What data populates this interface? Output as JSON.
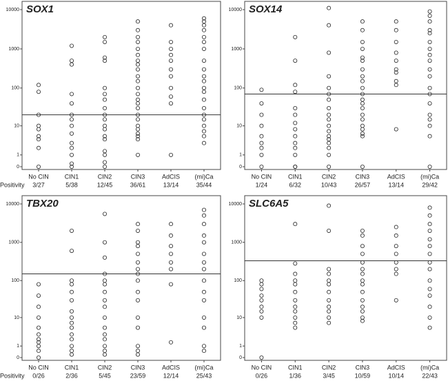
{
  "chart_data": [
    {
      "type": "scatter",
      "title": "SOX1",
      "positivity_label": "Positivity",
      "categories": [
        "No CIN",
        "CIN1",
        "CIN2",
        "CIN3",
        "AdCIS",
        "(mi)Ca"
      ],
      "positivity": [
        "3/27",
        "5/38",
        "12/45",
        "36/61",
        "13/14",
        "35/44"
      ],
      "points": [
        [
          0,
          2,
          4,
          5,
          8,
          10,
          20,
          80,
          120
        ],
        [
          0,
          0.2,
          1,
          2,
          3,
          6,
          10,
          15,
          20,
          40,
          70,
          400,
          500,
          1200
        ],
        [
          0,
          0.3,
          1,
          1.5,
          4,
          5,
          8,
          10,
          15,
          20,
          30,
          50,
          70,
          100,
          500,
          600,
          1500,
          2000
        ],
        [
          1,
          4,
          5,
          6,
          8,
          10,
          15,
          20,
          30,
          40,
          50,
          70,
          100,
          150,
          200,
          300,
          400,
          500,
          700,
          1000,
          1500,
          2000,
          3000,
          5000
        ],
        [
          1,
          40,
          60,
          100,
          200,
          300,
          500,
          700,
          1000,
          1500,
          4000
        ],
        [
          3,
          5,
          7,
          10,
          15,
          20,
          30,
          50,
          80,
          100,
          150,
          200,
          300,
          500,
          1000,
          1500,
          2000,
          3000,
          4000,
          5000,
          6000
        ]
      ],
      "threshold": 20,
      "ylim": [
        0,
        10000
      ],
      "yticks": [
        0,
        1,
        10,
        100,
        1000,
        10000
      ],
      "log_scale": true
    },
    {
      "type": "scatter",
      "title": "SOX14",
      "categories": [
        "No CIN",
        "CIN1",
        "CIN2",
        "CIN3",
        "AdCIS",
        "(mi)Ca"
      ],
      "positivity": [
        "1/24",
        "6/32",
        "10/43",
        "26/57",
        "13/14",
        "29/42"
      ],
      "points": [
        [
          0,
          1,
          2,
          3,
          5,
          10,
          20,
          40,
          90
        ],
        [
          0,
          0,
          1,
          2,
          3,
          5,
          8,
          12,
          20,
          30,
          80,
          120,
          500,
          2000
        ],
        [
          0,
          1,
          2,
          3,
          4,
          5,
          7,
          10,
          15,
          20,
          30,
          50,
          70,
          100,
          200,
          800,
          4000,
          11000
        ],
        [
          0,
          5,
          6,
          8,
          10,
          15,
          20,
          30,
          40,
          50,
          70,
          100,
          150,
          200,
          300,
          500,
          600,
          1000,
          1500,
          3000,
          5000
        ],
        [
          8,
          120,
          150,
          250,
          300,
          500,
          800,
          1500,
          3000,
          5000
        ],
        [
          0,
          5,
          10,
          15,
          20,
          40,
          70,
          100,
          200,
          300,
          500,
          700,
          1000,
          1500,
          2500,
          3000,
          5000,
          7000,
          9000
        ]
      ],
      "threshold": 70,
      "ylim": [
        0,
        10000
      ],
      "yticks": [
        0,
        1,
        10,
        100,
        1000,
        10000
      ],
      "log_scale": true
    },
    {
      "type": "scatter",
      "title": "TBX20",
      "positivity_label": "Positivity",
      "categories": [
        "No CIN",
        "CIN1",
        "CIN2",
        "CIN3",
        "AdCIS",
        "(mi)Ca"
      ],
      "positivity": [
        "0/26",
        "2/36",
        "5/45",
        "23/59",
        "12/14",
        "25/43"
      ],
      "points": [
        [
          0,
          0.5,
          1,
          1.5,
          2,
          3,
          5,
          10,
          20,
          40,
          80
        ],
        [
          0.2,
          0.5,
          1,
          2,
          3,
          5,
          7,
          10,
          15,
          30,
          50,
          80,
          100,
          600,
          2000
        ],
        [
          0.2,
          0.5,
          1,
          2,
          3,
          5,
          10,
          20,
          30,
          50,
          80,
          100,
          150,
          400,
          1000,
          5500
        ],
        [
          0.2,
          0.5,
          1,
          5,
          10,
          30,
          50,
          100,
          150,
          200,
          300,
          500,
          800,
          1000,
          2000,
          3000
        ],
        [
          1.5,
          80,
          200,
          300,
          500,
          800,
          1500,
          3000
        ],
        [
          0.5,
          1,
          5,
          10,
          30,
          50,
          100,
          200,
          300,
          500,
          1000,
          1500,
          3000,
          5000,
          7000
        ]
      ],
      "threshold": 150,
      "ylim": [
        0,
        10000
      ],
      "yticks": [
        0,
        1,
        10,
        100,
        1000,
        10000
      ],
      "log_scale": true
    },
    {
      "type": "scatter",
      "title": "SLC6A5",
      "categories": [
        "No CIN",
        "CIN1",
        "CIN2",
        "CIN3",
        "AdCIS",
        "(mi)Ca"
      ],
      "positivity": [
        "0/26",
        "1/36",
        "3/45",
        "10/59",
        "10/14",
        "22/43"
      ],
      "points": [
        [
          0,
          10,
          15,
          20,
          30,
          40,
          60,
          80,
          100
        ],
        [
          5,
          7,
          10,
          15,
          20,
          30,
          50,
          80,
          100,
          150,
          280,
          3000
        ],
        [
          7,
          10,
          15,
          20,
          30,
          50,
          80,
          100,
          150,
          200,
          2000,
          9000
        ],
        [
          8,
          10,
          15,
          20,
          30,
          50,
          80,
          100,
          150,
          200,
          300,
          500,
          800,
          1500,
          2000
        ],
        [
          30,
          150,
          200,
          300,
          500,
          800,
          1500,
          2500
        ],
        [
          5,
          10,
          20,
          40,
          60,
          100,
          200,
          300,
          500,
          800,
          1200,
          2000,
          3000,
          5000,
          8000
        ]
      ],
      "threshold": 330,
      "ylim": [
        0,
        10000
      ],
      "yticks": [
        0,
        1,
        10,
        100,
        1000,
        10000
      ],
      "log_scale": true
    }
  ]
}
